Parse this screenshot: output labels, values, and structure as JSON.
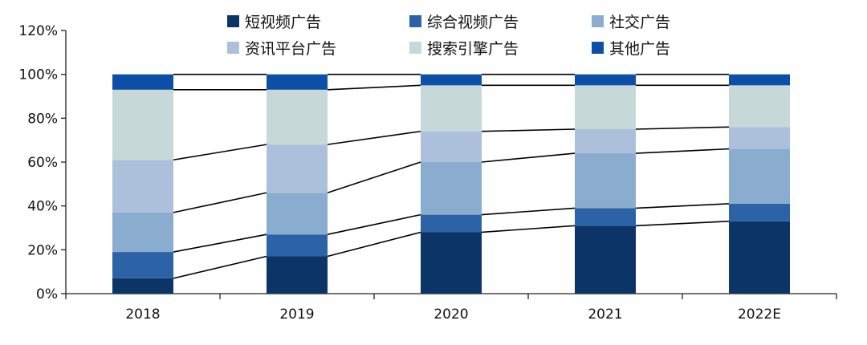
{
  "chart_data": {
    "type": "bar",
    "stacked": true,
    "categories": [
      "2018",
      "2019",
      "2020",
      "2021",
      "2022E"
    ],
    "series": [
      {
        "name": "短视频广告",
        "color": "#0d3466",
        "values": [
          7,
          17,
          28,
          31,
          33
        ]
      },
      {
        "name": "综合视频广告",
        "color": "#2b63a6",
        "values": [
          12,
          10,
          8,
          8,
          8
        ]
      },
      {
        "name": "社交广告",
        "color": "#8aacce",
        "values": [
          18,
          19,
          24,
          25,
          25
        ]
      },
      {
        "name": "资讯平台广告",
        "color": "#adc0db",
        "values": [
          24,
          22,
          14,
          11,
          10
        ]
      },
      {
        "name": "搜索引擎广告",
        "color": "#c7d8d8",
        "values": [
          32,
          25,
          21,
          20,
          19
        ]
      },
      {
        "name": "其他广告",
        "color": "#0d4fa6",
        "values": [
          7,
          7,
          5,
          5,
          5
        ]
      }
    ],
    "y_ticks": [
      "0%",
      "20%",
      "40%",
      "60%",
      "80%",
      "100%",
      "120%"
    ],
    "ylim": [
      0,
      120
    ],
    "y_unit": "%",
    "legend_position": "top",
    "connector_lines": true
  }
}
